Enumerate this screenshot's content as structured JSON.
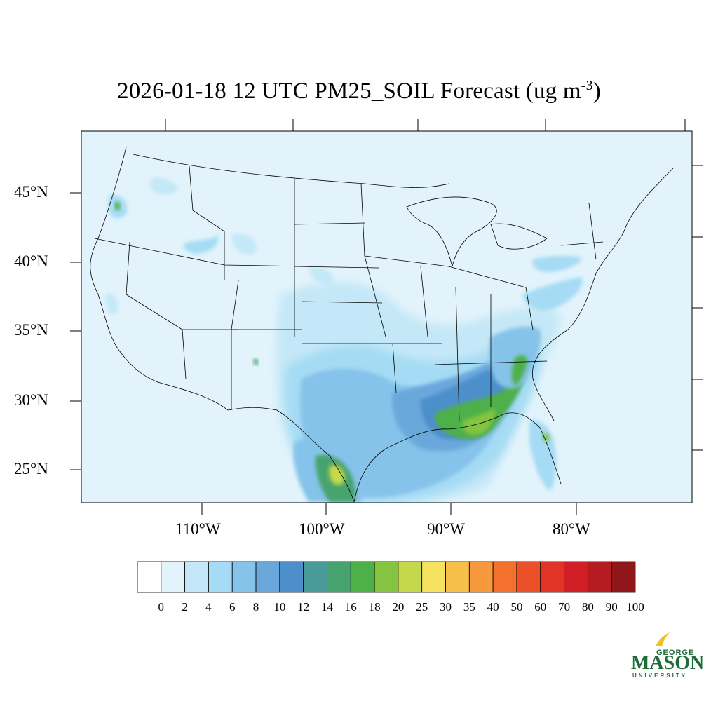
{
  "title": {
    "date": "2026-01-18",
    "hour": "12 UTC",
    "variable": "PM25_SOIL",
    "kind": "Forecast",
    "units_prefix": "(ug m",
    "units_exp": "-3",
    "units_suffix": ")"
  },
  "lat_labels": [
    "45°N",
    "40°N",
    "35°N",
    "30°N",
    "25°N"
  ],
  "lon_labels": [
    "110°W",
    "100°W",
    "90°W",
    "80°W"
  ],
  "colorbar": {
    "labels": [
      "0",
      "2",
      "4",
      "6",
      "8",
      "10",
      "12",
      "14",
      "16",
      "18",
      "20",
      "25",
      "30",
      "35",
      "40",
      "50",
      "60",
      "70",
      "80",
      "90",
      "100"
    ],
    "colors": [
      "#ffffff",
      "#e2f3fb",
      "#c4e8f7",
      "#a5dbf4",
      "#86c3ea",
      "#6aa8dc",
      "#4d8fcb",
      "#4a9a9a",
      "#46a36e",
      "#4eb049",
      "#85c440",
      "#c4d84c",
      "#f5e25e",
      "#f7bf48",
      "#f5993c",
      "#f3702d",
      "#eb5029",
      "#e03426",
      "#d21f27",
      "#b71b22",
      "#8f1619"
    ]
  },
  "map": {
    "background_color": "#e2f3fb",
    "boundaries": "US states, Canada, Mexico coastlines",
    "hotspots": [
      {
        "region": "South Texas",
        "level": "25"
      },
      {
        "region": "Gulf Coast (MS/AL/FL panhandle)",
        "level": "18-20"
      },
      {
        "region": "Georgia/South Carolina",
        "level": "18-20"
      },
      {
        "region": "Central Florida",
        "level": "20"
      },
      {
        "region": "Oregon Cascades",
        "level": "16"
      }
    ]
  },
  "logo": {
    "top": "GEORGE",
    "main": "MASON",
    "bottom": "UNIVERSITY"
  }
}
